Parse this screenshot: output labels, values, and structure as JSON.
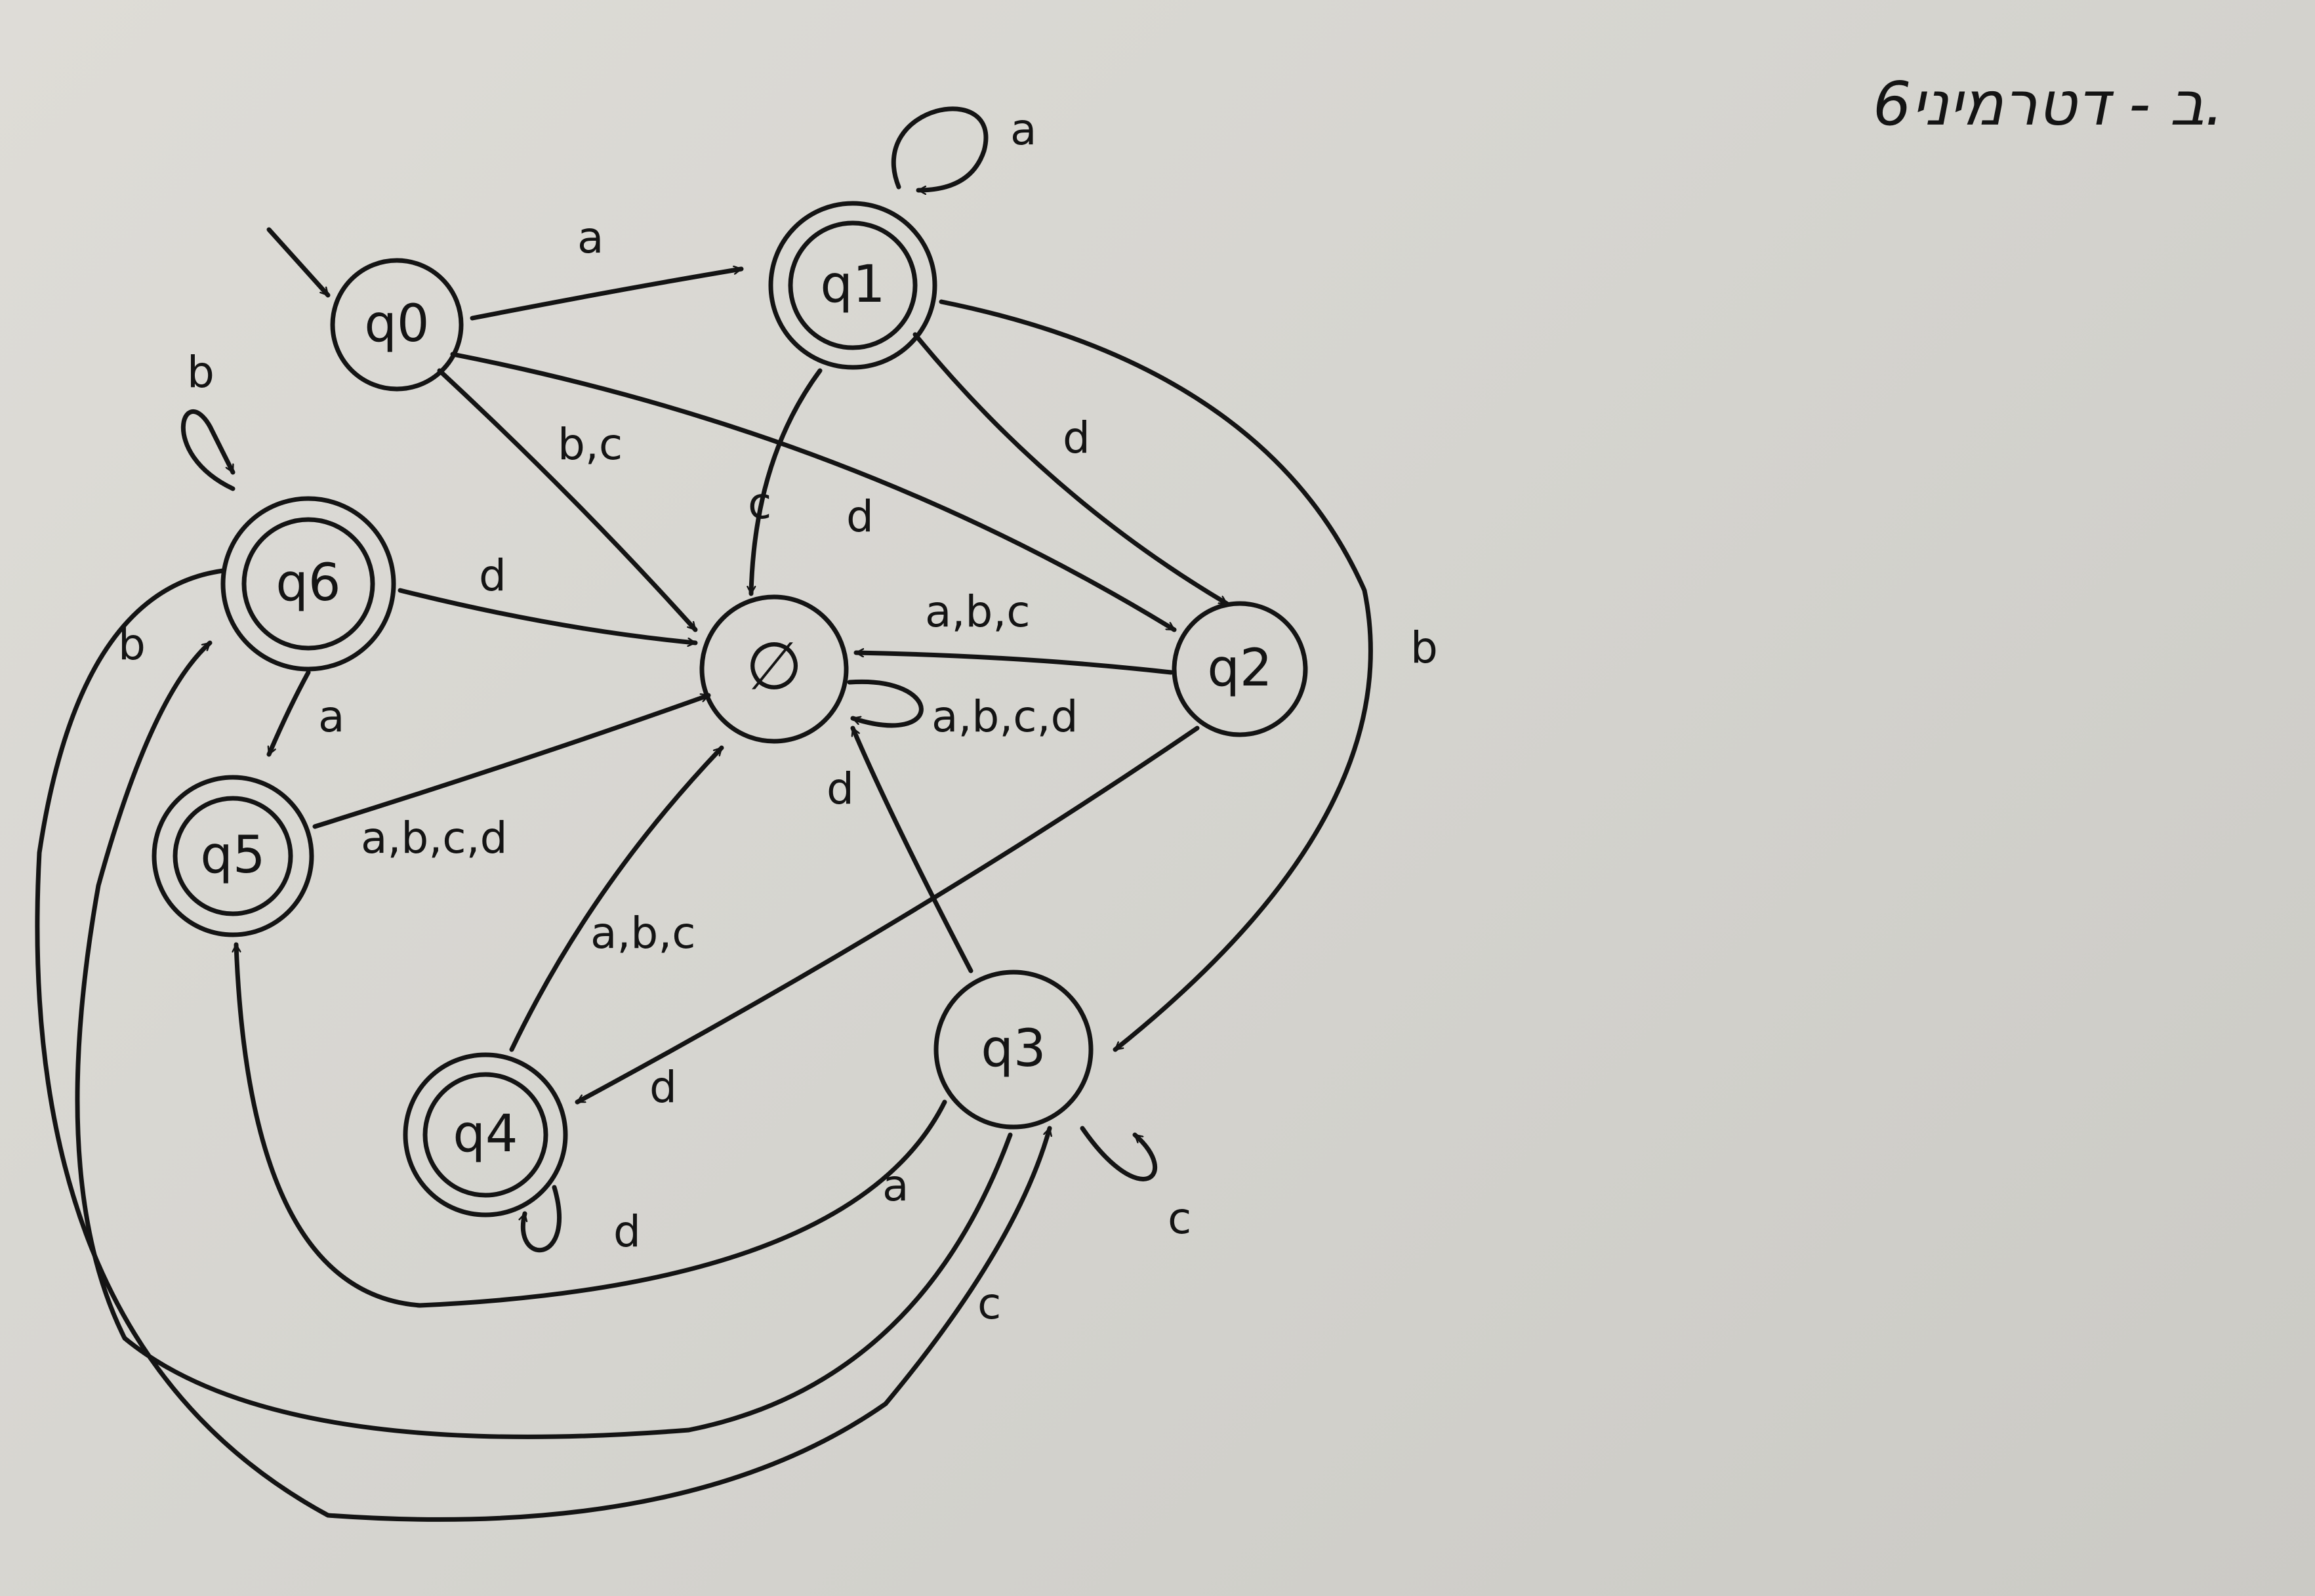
{
  "title_note": "6ב - דטרמיני.",
  "nodes": [
    {
      "id": "q0",
      "label": "q0",
      "accepting": false,
      "initial": true
    },
    {
      "id": "q1",
      "label": "q1",
      "accepting": true
    },
    {
      "id": "q2",
      "label": "q2",
      "accepting": false
    },
    {
      "id": "q3",
      "label": "q3",
      "accepting": false
    },
    {
      "id": "q4",
      "label": "q4",
      "accepting": true
    },
    {
      "id": "q5",
      "label": "q5",
      "accepting": true
    },
    {
      "id": "q6",
      "label": "q6",
      "accepting": true
    },
    {
      "id": "empty",
      "label": "∅",
      "accepting": false
    }
  ],
  "edges": [
    {
      "from": "q0",
      "to": "q1",
      "label": "a"
    },
    {
      "from": "q0",
      "to": "empty",
      "label": "b,c"
    },
    {
      "from": "q0",
      "to": "q2",
      "label": "d"
    },
    {
      "from": "q1",
      "to": "q1",
      "label": "a"
    },
    {
      "from": "q1",
      "to": "empty",
      "label": "c"
    },
    {
      "from": "q1",
      "to": "q2",
      "label": "d"
    },
    {
      "from": "q1",
      "to": "q3",
      "label": "b"
    },
    {
      "from": "q2",
      "to": "empty",
      "label": "a,b,c"
    },
    {
      "from": "q2",
      "to": "q4",
      "label": "d"
    },
    {
      "from": "empty",
      "to": "empty",
      "label": "a,b,c,d"
    },
    {
      "from": "q3",
      "to": "empty",
      "label": "d"
    },
    {
      "from": "q3",
      "to": "q3",
      "label": "c"
    },
    {
      "from": "q3",
      "to": "q5",
      "label": "a"
    },
    {
      "from": "q4",
      "to": "empty",
      "label": "a,b,c"
    },
    {
      "from": "q4",
      "to": "q4",
      "label": "d"
    },
    {
      "from": "q5",
      "to": "empty",
      "label": "a,b,c,d"
    },
    {
      "from": "q6",
      "to": "q6",
      "label": "b"
    },
    {
      "from": "q6",
      "to": "empty",
      "label": "d"
    },
    {
      "from": "q6",
      "to": "q5",
      "label": "a"
    },
    {
      "from": "q6",
      "to": "q3",
      "label": "c"
    },
    {
      "from": "q3",
      "to": "q6",
      "label": "b"
    }
  ]
}
